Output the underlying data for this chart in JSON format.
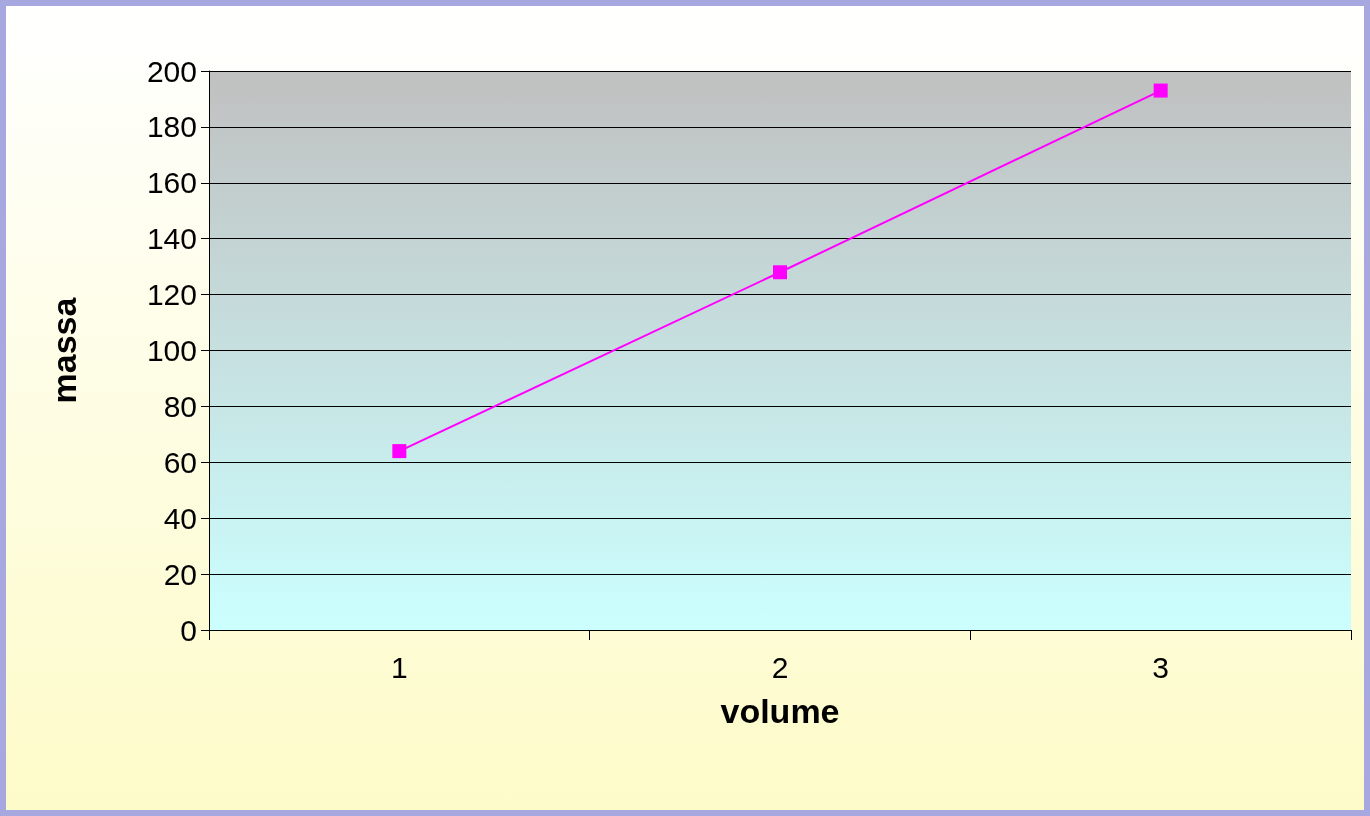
{
  "chart_data": {
    "type": "line",
    "xlabel": "volume",
    "ylabel": "massa",
    "categories": [
      "1",
      "2",
      "3"
    ],
    "series": [
      {
        "color": "#ff00ff",
        "values": [
          64,
          128,
          193
        ]
      }
    ],
    "ylim": [
      0,
      200
    ],
    "yticks": [
      0,
      20,
      40,
      60,
      80,
      100,
      120,
      140,
      160,
      180,
      200
    ],
    "grid": "y",
    "marker": "square",
    "line_style": "solid"
  }
}
